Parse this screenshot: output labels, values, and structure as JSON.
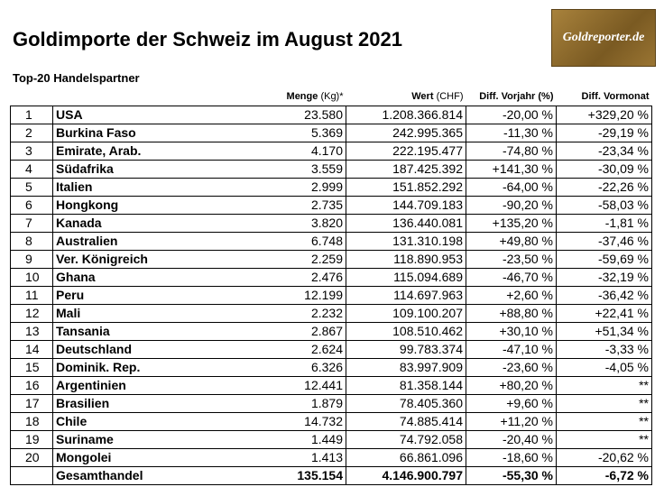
{
  "header": {
    "title": "Goldimporte der Schweiz im August 2021",
    "logo": "Goldreporter.de",
    "subtitle": "Top-20 Handelspartner"
  },
  "table": {
    "columns": [
      {
        "label": "Menge",
        "unit": "(Kg)*"
      },
      {
        "label": "Wert",
        "unit": "(CHF)"
      },
      {
        "label": "Diff. Vorjahr (%)"
      },
      {
        "label": "Diff. Vormonat"
      }
    ],
    "rows": [
      [
        "1",
        "USA",
        "23.580",
        "1.208.366.814",
        "-20,00 %",
        "+329,20 %"
      ],
      [
        "2",
        "Burkina Faso",
        "5.369",
        "242.995.365",
        "-11,30 %",
        "-29,19 %"
      ],
      [
        "3",
        "Emirate, Arab.",
        "4.170",
        "222.195.477",
        "-74,80 %",
        "-23,34 %"
      ],
      [
        "4",
        "Südafrika",
        "3.559",
        "187.425.392",
        "+141,30 %",
        "-30,09 %"
      ],
      [
        "5",
        "Italien",
        "2.999",
        "151.852.292",
        "-64,00 %",
        "-22,26 %"
      ],
      [
        "6",
        "Hongkong",
        "2.735",
        "144.709.183",
        "-90,20 %",
        "-58,03 %"
      ],
      [
        "7",
        "Kanada",
        "3.820",
        "136.440.081",
        "+135,20 %",
        "-1,81 %"
      ],
      [
        "8",
        "Australien",
        "6.748",
        "131.310.198",
        "+49,80 %",
        "-37,46 %"
      ],
      [
        "9",
        "Ver. Königreich",
        "2.259",
        "118.890.953",
        "-23,50 %",
        "-59,69 %"
      ],
      [
        "10",
        "Ghana",
        "2.476",
        "115.094.689",
        "-46,70 %",
        "-32,19 %"
      ],
      [
        "11",
        "Peru",
        "12.199",
        "114.697.963",
        "+2,60 %",
        "-36,42 %"
      ],
      [
        "12",
        "Mali",
        "2.232",
        "109.100.207",
        "+88,80 %",
        "+22,41 %"
      ],
      [
        "13",
        "Tansania",
        "2.867",
        "108.510.462",
        "+30,10 %",
        "+51,34 %"
      ],
      [
        "14",
        "Deutschland",
        "2.624",
        "99.783.374",
        "-47,10 %",
        "-3,33 %"
      ],
      [
        "15",
        "Dominik. Rep.",
        "6.326",
        "83.997.909",
        "-23,60 %",
        "-4,05 %"
      ],
      [
        "16",
        "Argentinien",
        "12.441",
        "81.358.144",
        "+80,20 %",
        "**"
      ],
      [
        "17",
        "Brasilien",
        "1.879",
        "78.405.360",
        "+9,60 %",
        "**"
      ],
      [
        "18",
        "Chile",
        "14.732",
        "74.885.414",
        "+11,20 %",
        "**"
      ],
      [
        "19",
        "Suriname",
        "1.449",
        "74.792.058",
        "-20,40 %",
        "**"
      ],
      [
        "20",
        "Mongolei",
        "1.413",
        "66.861.096",
        "-18,60 %",
        "-20,62 %"
      ]
    ],
    "total": [
      "Gesamthandel",
      "135.154",
      "4.146.900.797",
      "-55,30 %",
      "-6,72 %"
    ]
  }
}
